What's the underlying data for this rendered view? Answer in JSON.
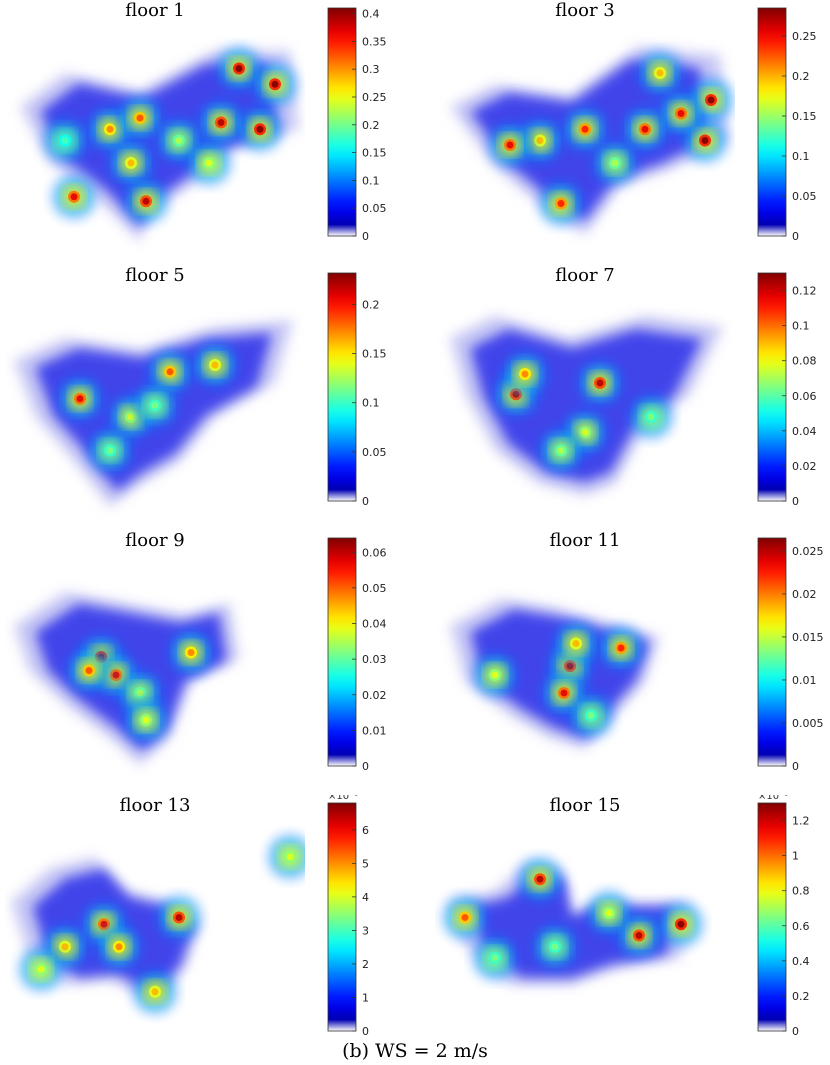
{
  "caption": "(b) WS = 2 m/s",
  "colormap": "jet",
  "chart_data": [
    {
      "type": "heatmap",
      "title": "floor 1",
      "colorbar": {
        "ticks": [
          "0",
          "0.05",
          "0.1",
          "0.15",
          "0.2",
          "0.25",
          "0.3",
          "0.35",
          "0.4"
        ],
        "min": 0,
        "max": 0.41,
        "exponent": ""
      },
      "hotspots": [
        {
          "x": 0.78,
          "y": 0.18,
          "v": 1.0
        },
        {
          "x": 0.9,
          "y": 0.25,
          "v": 1.0
        },
        {
          "x": 0.85,
          "y": 0.45,
          "v": 1.0
        },
        {
          "x": 0.72,
          "y": 0.42,
          "v": 0.95
        },
        {
          "x": 0.35,
          "y": 0.45,
          "v": 0.75
        },
        {
          "x": 0.45,
          "y": 0.4,
          "v": 0.8
        },
        {
          "x": 0.42,
          "y": 0.6,
          "v": 0.7
        },
        {
          "x": 0.23,
          "y": 0.75,
          "v": 0.9
        },
        {
          "x": 0.47,
          "y": 0.77,
          "v": 0.95
        },
        {
          "x": 0.58,
          "y": 0.5,
          "v": 0.55
        },
        {
          "x": 0.2,
          "y": 0.5,
          "v": 0.45
        },
        {
          "x": 0.68,
          "y": 0.6,
          "v": 0.6
        }
      ]
    },
    {
      "type": "heatmap",
      "title": "floor 3",
      "colorbar": {
        "ticks": [
          "0",
          "0.05",
          "0.1",
          "0.15",
          "0.2",
          "0.25"
        ],
        "min": 0,
        "max": 0.285,
        "exponent": ""
      },
      "hotspots": [
        {
          "x": 0.92,
          "y": 0.32,
          "v": 1.0
        },
        {
          "x": 0.9,
          "y": 0.5,
          "v": 1.0
        },
        {
          "x": 0.82,
          "y": 0.38,
          "v": 0.9
        },
        {
          "x": 0.7,
          "y": 0.45,
          "v": 0.9
        },
        {
          "x": 0.5,
          "y": 0.45,
          "v": 0.85
        },
        {
          "x": 0.35,
          "y": 0.5,
          "v": 0.7
        },
        {
          "x": 0.25,
          "y": 0.52,
          "v": 0.9
        },
        {
          "x": 0.42,
          "y": 0.78,
          "v": 0.85
        },
        {
          "x": 0.6,
          "y": 0.6,
          "v": 0.55
        },
        {
          "x": 0.75,
          "y": 0.2,
          "v": 0.7
        }
      ]
    },
    {
      "type": "heatmap",
      "title": "floor 5",
      "colorbar": {
        "ticks": [
          "0",
          "0.05",
          "0.1",
          "0.15",
          "0.2"
        ],
        "min": 0,
        "max": 0.232,
        "exponent": ""
      },
      "hotspots": [
        {
          "x": 0.25,
          "y": 0.47,
          "v": 0.9
        },
        {
          "x": 0.55,
          "y": 0.35,
          "v": 0.8
        },
        {
          "x": 0.7,
          "y": 0.32,
          "v": 0.7
        },
        {
          "x": 0.42,
          "y": 0.55,
          "v": 0.6
        },
        {
          "x": 0.35,
          "y": 0.7,
          "v": 0.5
        },
        {
          "x": 0.5,
          "y": 0.5,
          "v": 0.5
        }
      ]
    },
    {
      "type": "heatmap",
      "title": "floor 7",
      "colorbar": {
        "ticks": [
          "0",
          "0.02",
          "0.04",
          "0.06",
          "0.08",
          "0.1",
          "0.12"
        ],
        "min": 0,
        "max": 0.13,
        "exponent": ""
      },
      "hotspots": [
        {
          "x": 0.27,
          "y": 0.45,
          "v": 0.95
        },
        {
          "x": 0.55,
          "y": 0.4,
          "v": 0.95
        },
        {
          "x": 0.3,
          "y": 0.36,
          "v": 0.75
        },
        {
          "x": 0.5,
          "y": 0.62,
          "v": 0.6
        },
        {
          "x": 0.42,
          "y": 0.7,
          "v": 0.55
        },
        {
          "x": 0.72,
          "y": 0.55,
          "v": 0.5
        }
      ]
    },
    {
      "type": "heatmap",
      "title": "floor 9",
      "colorbar": {
        "ticks": [
          "0",
          "0.01",
          "0.02",
          "0.03",
          "0.04",
          "0.05",
          "0.06"
        ],
        "min": 0,
        "max": 0.064,
        "exponent": ""
      },
      "hotspots": [
        {
          "x": 0.32,
          "y": 0.44,
          "v": 1.0
        },
        {
          "x": 0.37,
          "y": 0.52,
          "v": 0.9
        },
        {
          "x": 0.28,
          "y": 0.5,
          "v": 0.8
        },
        {
          "x": 0.62,
          "y": 0.42,
          "v": 0.75
        },
        {
          "x": 0.45,
          "y": 0.6,
          "v": 0.55
        },
        {
          "x": 0.47,
          "y": 0.72,
          "v": 0.6
        }
      ]
    },
    {
      "type": "heatmap",
      "title": "floor 11",
      "colorbar": {
        "ticks": [
          "0",
          "0.005",
          "0.01",
          "0.015",
          "0.02",
          "0.025"
        ],
        "min": 0,
        "max": 0.0265,
        "exponent": ""
      },
      "hotspots": [
        {
          "x": 0.45,
          "y": 0.48,
          "v": 0.95
        },
        {
          "x": 0.43,
          "y": 0.6,
          "v": 0.9
        },
        {
          "x": 0.47,
          "y": 0.38,
          "v": 0.7
        },
        {
          "x": 0.62,
          "y": 0.4,
          "v": 0.85
        },
        {
          "x": 0.2,
          "y": 0.52,
          "v": 0.6
        },
        {
          "x": 0.52,
          "y": 0.7,
          "v": 0.5
        }
      ]
    },
    {
      "type": "heatmap",
      "title": "floor 13",
      "colorbar": {
        "ticks": [
          "0",
          "1",
          "2",
          "3",
          "4",
          "5",
          "6"
        ],
        "min": 0,
        "max": 6.8,
        "exponent": "×10⁻³"
      },
      "hotspots": [
        {
          "x": 0.33,
          "y": 0.45,
          "v": 0.9
        },
        {
          "x": 0.58,
          "y": 0.42,
          "v": 0.95
        },
        {
          "x": 0.2,
          "y": 0.55,
          "v": 0.7
        },
        {
          "x": 0.38,
          "y": 0.55,
          "v": 0.75
        },
        {
          "x": 0.5,
          "y": 0.75,
          "v": 0.7
        },
        {
          "x": 0.95,
          "y": 0.15,
          "v": 0.6
        },
        {
          "x": 0.12,
          "y": 0.65,
          "v": 0.6
        }
      ]
    },
    {
      "type": "heatmap",
      "title": "floor 15",
      "colorbar": {
        "ticks": [
          "0",
          "0.2",
          "0.4",
          "0.6",
          "0.8",
          "1",
          "1.2"
        ],
        "min": 0,
        "max": 1.3,
        "exponent": "×10⁻³"
      },
      "hotspots": [
        {
          "x": 0.35,
          "y": 0.25,
          "v": 0.95
        },
        {
          "x": 0.82,
          "y": 0.45,
          "v": 1.0
        },
        {
          "x": 0.68,
          "y": 0.5,
          "v": 0.95
        },
        {
          "x": 0.1,
          "y": 0.42,
          "v": 0.8
        },
        {
          "x": 0.58,
          "y": 0.4,
          "v": 0.6
        },
        {
          "x": 0.2,
          "y": 0.6,
          "v": 0.5
        },
        {
          "x": 0.4,
          "y": 0.55,
          "v": 0.5
        }
      ]
    }
  ]
}
